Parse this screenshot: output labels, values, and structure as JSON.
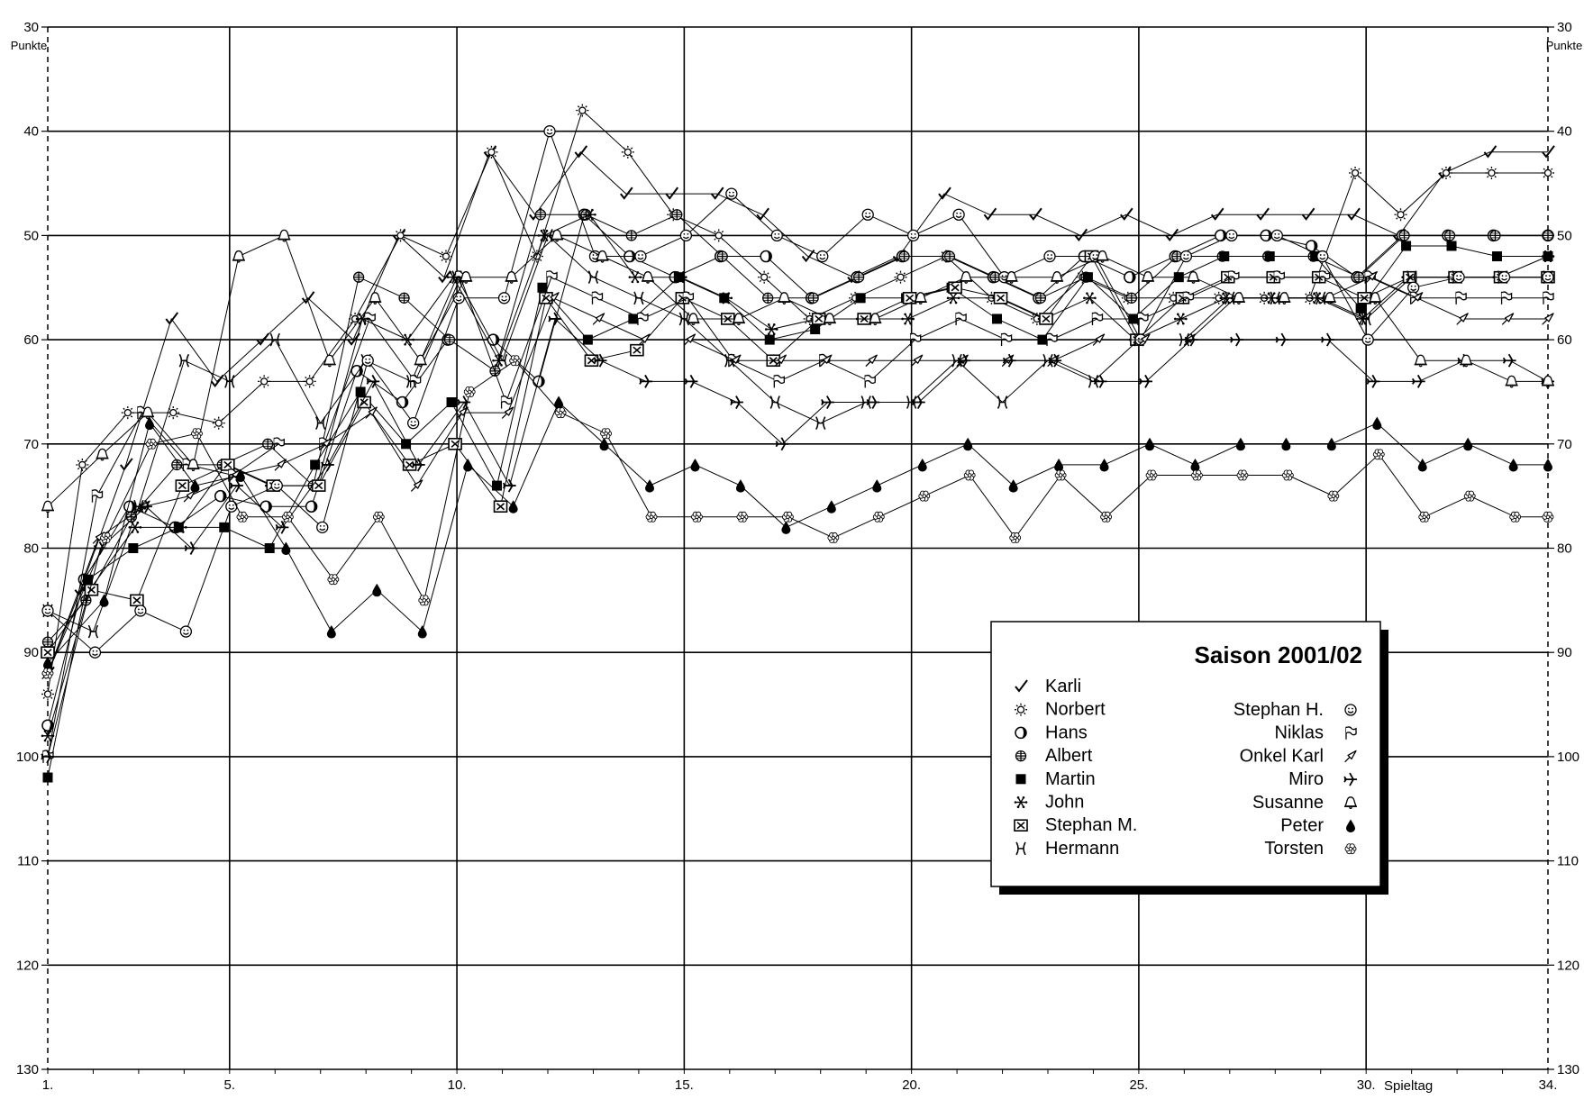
{
  "chart_data": {
    "type": "line",
    "title": "Saison 2001/02",
    "ylabel": "Punkte",
    "xlabel": "Spieltag",
    "y_inverted": true,
    "ylim": [
      30,
      130
    ],
    "xlim": [
      1,
      34
    ],
    "y_ticks": [
      "30",
      "40",
      "50",
      "60",
      "70",
      "80",
      "90",
      "100",
      "110",
      "120",
      "130"
    ],
    "x_ticks": [
      {
        "value": 1,
        "label": "1."
      },
      {
        "value": 5,
        "label": "5."
      },
      {
        "value": 10,
        "label": "10."
      },
      {
        "value": 15,
        "label": "15."
      },
      {
        "value": 20,
        "label": "20."
      },
      {
        "value": 25,
        "label": "25."
      },
      {
        "value": 30,
        "label": "30."
      },
      {
        "value": 34,
        "label": "34."
      }
    ],
    "grid": true,
    "legend_position": "bottom-right",
    "series": [
      {
        "name": "Karli",
        "symbol": "check",
        "values": [
          92,
          84,
          72,
          58,
          64,
          60,
          56,
          60,
          50,
          54,
          42,
          48,
          42,
          46,
          46,
          46,
          48,
          52,
          54,
          52,
          46,
          48,
          48,
          50,
          48,
          50,
          48,
          48,
          48,
          48,
          50,
          44,
          42,
          42
        ]
      },
      {
        "name": "Norbert",
        "symbol": "sun",
        "values": [
          94,
          72,
          67,
          67,
          68,
          64,
          64,
          58,
          50,
          52,
          42,
          52,
          38,
          42,
          48,
          50,
          54,
          58,
          56,
          54,
          52,
          56,
          58,
          54,
          56,
          56,
          56,
          56,
          56,
          44,
          48,
          44,
          44,
          44
        ]
      },
      {
        "name": "Hans",
        "symbol": "half-circle",
        "values": [
          97,
          83,
          76,
          78,
          75,
          76,
          76,
          63,
          66,
          60,
          60,
          64,
          48,
          52,
          54,
          52,
          52,
          56,
          54,
          52,
          52,
          54,
          56,
          52,
          54,
          52,
          50,
          50,
          51,
          54,
          50,
          50,
          50,
          50
        ]
      },
      {
        "name": "Albert",
        "symbol": "grid-circle",
        "values": [
          89,
          85,
          77,
          72,
          72,
          70,
          74,
          54,
          56,
          60,
          63,
          48,
          48,
          50,
          48,
          52,
          56,
          56,
          54,
          52,
          52,
          54,
          56,
          54,
          56,
          52,
          52,
          52,
          52,
          54,
          50,
          50,
          50,
          50
        ]
      },
      {
        "name": "Martin",
        "symbol": "square",
        "values": [
          102,
          83,
          80,
          78,
          78,
          80,
          72,
          65,
          70,
          66,
          74,
          55,
          60,
          58,
          54,
          56,
          60,
          59,
          56,
          56,
          55,
          58,
          60,
          54,
          58,
          54,
          52,
          52,
          52,
          57,
          51,
          51,
          52,
          52
        ]
      },
      {
        "name": "John",
        "symbol": "snowflake",
        "values": [
          98,
          84,
          78,
          78,
          72,
          74,
          74,
          58,
          60,
          54,
          62,
          50,
          48,
          54,
          54,
          56,
          59,
          58,
          58,
          58,
          56,
          56,
          58,
          56,
          60,
          58,
          56,
          56,
          56,
          58,
          54,
          54,
          54,
          52
        ]
      },
      {
        "name": "Stephan M.",
        "symbol": "box-x",
        "values": [
          90,
          84,
          85,
          74,
          72,
          74,
          74,
          66,
          72,
          70,
          76,
          56,
          62,
          61,
          56,
          58,
          62,
          58,
          58,
          56,
          55,
          56,
          58,
          52,
          60,
          56,
          54,
          54,
          54,
          56,
          54,
          54,
          54,
          54
        ]
      },
      {
        "name": "Hermann",
        "symbol": "hermann",
        "values": [
          86,
          88,
          76,
          62,
          64,
          60,
          68,
          62,
          64,
          54,
          62,
          50,
          54,
          56,
          58,
          62,
          66,
          68,
          66,
          66,
          62,
          66,
          62,
          64,
          60,
          60,
          56,
          56,
          56,
          58,
          54,
          54,
          54,
          54
        ]
      },
      {
        "name": "Stephan H.",
        "symbol": "smiley",
        "values": [
          86,
          90,
          86,
          88,
          76,
          74,
          78,
          62,
          68,
          56,
          56,
          40,
          52,
          52,
          50,
          46,
          50,
          52,
          48,
          50,
          48,
          54,
          52,
          52,
          60,
          52,
          50,
          50,
          52,
          60,
          55,
          54,
          54,
          54
        ]
      },
      {
        "name": "Niklas",
        "symbol": "flag",
        "values": [
          100,
          75,
          67,
          72,
          73,
          70,
          70,
          58,
          64,
          54,
          66,
          54,
          56,
          58,
          56,
          62,
          64,
          62,
          64,
          60,
          58,
          60,
          60,
          58,
          58,
          56,
          54,
          54,
          54,
          54,
          56,
          56,
          56,
          56
        ]
      },
      {
        "name": "Onkel Karl",
        "symbol": "arrow",
        "values": [
          92,
          79,
          76,
          75,
          73,
          72,
          70,
          67,
          74,
          67,
          67,
          56,
          58,
          60,
          60,
          62,
          62,
          62,
          62,
          62,
          62,
          62,
          62,
          60,
          60,
          60,
          56,
          56,
          56,
          54,
          56,
          58,
          58,
          58
        ]
      },
      {
        "name": "Miro",
        "symbol": "plane",
        "values": [
          100,
          80,
          76,
          80,
          74,
          78,
          72,
          64,
          72,
          66,
          74,
          58,
          62,
          64,
          64,
          66,
          70,
          66,
          66,
          66,
          62,
          62,
          62,
          64,
          64,
          60,
          60,
          60,
          60,
          64,
          64,
          62,
          62,
          64
        ]
      },
      {
        "name": "Susanne",
        "symbol": "bell",
        "values": [
          76,
          71,
          67,
          72,
          52,
          50,
          62,
          56,
          62,
          54,
          54,
          50,
          52,
          54,
          58,
          58,
          56,
          58,
          58,
          56,
          54,
          54,
          54,
          52,
          54,
          54,
          56,
          56,
          56,
          56,
          62,
          62,
          64,
          64
        ]
      },
      {
        "name": "Peter",
        "symbol": "drop",
        "values": [
          91,
          85,
          68,
          74,
          73,
          80,
          88,
          84,
          88,
          72,
          76,
          66,
          70,
          74,
          72,
          74,
          78,
          76,
          74,
          72,
          70,
          74,
          72,
          72,
          70,
          72,
          70,
          70,
          70,
          68,
          72,
          70,
          72,
          72
        ]
      },
      {
        "name": "Torsten",
        "symbol": "flower",
        "values": [
          92,
          79,
          70,
          69,
          77,
          77,
          83,
          77,
          85,
          65,
          62,
          67,
          69,
          77,
          77,
          77,
          77,
          79,
          77,
          75,
          73,
          79,
          73,
          77,
          73,
          73,
          73,
          73,
          75,
          71,
          77,
          75,
          77,
          77
        ]
      }
    ]
  }
}
